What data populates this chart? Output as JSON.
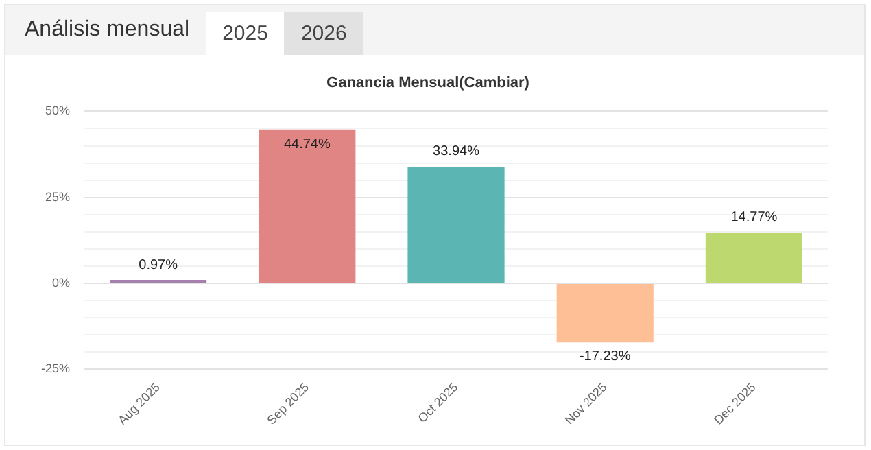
{
  "chart_data": {
    "type": "bar",
    "title": "Ganancia Mensual(Cambiar)",
    "annotations": [
      "Análisis mensual",
      "2025",
      "2026"
    ],
    "categories": [
      "Aug 2025",
      "Sep 2025",
      "Oct 2025",
      "Nov 2025",
      "Dec 2025"
    ],
    "values": [
      0.97,
      44.74,
      33.94,
      -17.23,
      14.77
    ],
    "colors": [
      "#a57fae",
      "#e08584",
      "#5ab5b3",
      "#ffbf96",
      "#bdd86e"
    ],
    "value_labels": [
      "0.97%",
      "44.74%",
      "33.94%",
      "-17.23%",
      "14.77%"
    ],
    "ylim": [
      -25,
      50
    ],
    "yticks": [
      {
        "value": -25,
        "label": "-25%"
      },
      {
        "value": -20,
        "label": null
      },
      {
        "value": -15,
        "label": null
      },
      {
        "value": -10,
        "label": null
      },
      {
        "value": -5,
        "label": null
      },
      {
        "value": 0,
        "label": "0%"
      },
      {
        "value": 5,
        "label": null
      },
      {
        "value": 10,
        "label": null
      },
      {
        "value": 15,
        "label": null
      },
      {
        "value": 20,
        "label": null
      },
      {
        "value": 25,
        "label": "25%"
      },
      {
        "value": 30,
        "label": null
      },
      {
        "value": 35,
        "label": null
      },
      {
        "value": 40,
        "label": null
      },
      {
        "value": 45,
        "label": null
      },
      {
        "value": 50,
        "label": "50%"
      }
    ],
    "grid": "y",
    "legend": false
  }
}
